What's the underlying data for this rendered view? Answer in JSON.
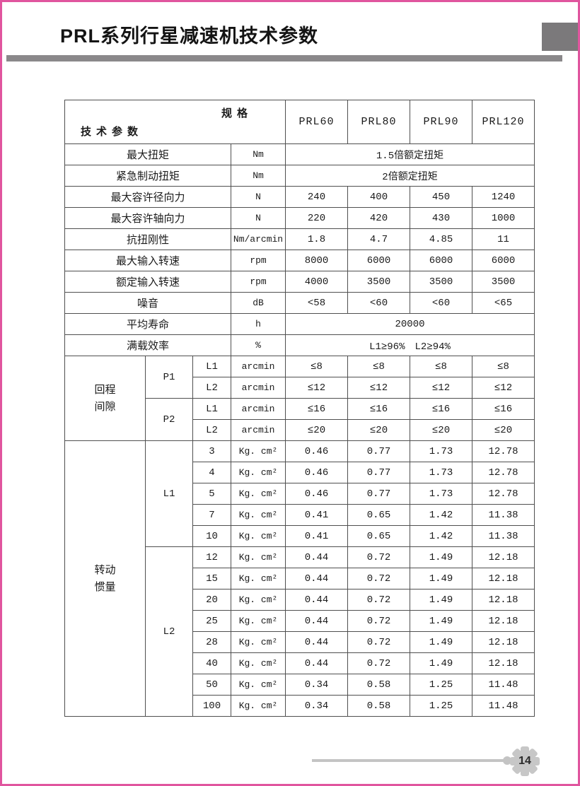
{
  "page": {
    "title": "PRL系列行星减速机技术参数",
    "page_number": "14"
  },
  "colors": {
    "accent_pink": "#e0559e",
    "header_bar_gray": "#8a888a",
    "corner_block_gray": "#7b797b",
    "row_shade": "#ddd9d3",
    "footer_gray": "#c4c4c4"
  },
  "table": {
    "corner": {
      "top_right": "规格",
      "bottom_left": "技术参数"
    },
    "columns": [
      "PRL60",
      "PRL80",
      "PRL90",
      "PRL120"
    ],
    "simple_rows": [
      {
        "label": "最大扭矩",
        "unit": "Nm",
        "span": "1.5倍额定扭矩",
        "shaded": true
      },
      {
        "label": "紧急制动扭矩",
        "unit": "Nm",
        "span": "2倍额定扭矩",
        "shaded": false
      },
      {
        "label": "最大容许径向力",
        "unit": "N",
        "values": [
          "240",
          "400",
          "450",
          "1240"
        ],
        "shaded": true
      },
      {
        "label": "最大容许轴向力",
        "unit": "N",
        "values": [
          "220",
          "420",
          "430",
          "1000"
        ],
        "shaded": false
      },
      {
        "label": "抗扭刚性",
        "unit": "Nm/arcmin",
        "values": [
          "1.8",
          "4.7",
          "4.85",
          "11"
        ],
        "shaded": true
      },
      {
        "label": "最大输入转速",
        "unit": "rpm",
        "values": [
          "8000",
          "6000",
          "6000",
          "6000"
        ],
        "shaded": false
      },
      {
        "label": "额定输入转速",
        "unit": "rpm",
        "values": [
          "4000",
          "3500",
          "3500",
          "3500"
        ],
        "shaded": true
      },
      {
        "label": "噪音",
        "unit": "dB",
        "values": [
          "<58",
          "<60",
          "<60",
          "<65"
        ],
        "shaded": false
      },
      {
        "label": "平均寿命",
        "unit": "h",
        "span": "20000",
        "shaded": true
      },
      {
        "label": "满载效率",
        "unit": "%",
        "span": "L1≥96%　L2≥94%",
        "shaded": false
      }
    ],
    "backlash": {
      "label": "回程间隙",
      "groups": [
        {
          "label": "P1",
          "rows": [
            {
              "stage": "L1",
              "unit": "arcmin",
              "values": [
                "≤8",
                "≤8",
                "≤8",
                "≤8"
              ],
              "shaded": true
            },
            {
              "stage": "L2",
              "unit": "arcmin",
              "values": [
                "≤12",
                "≤12",
                "≤12",
                "≤12"
              ],
              "shaded": false
            }
          ]
        },
        {
          "label": "P2",
          "rows": [
            {
              "stage": "L1",
              "unit": "arcmin",
              "values": [
                "≤16",
                "≤16",
                "≤16",
                "≤16"
              ],
              "shaded": true
            },
            {
              "stage": "L2",
              "unit": "arcmin",
              "values": [
                "≤20",
                "≤20",
                "≤20",
                "≤20"
              ],
              "shaded": false
            }
          ]
        }
      ]
    },
    "inertia": {
      "label": "转动惯量",
      "groups": [
        {
          "label": "L1",
          "rows": [
            {
              "ratio": "3",
              "unit": "Kg. cm²",
              "values": [
                "0.46",
                "0.77",
                "1.73",
                "12.78"
              ],
              "shaded": true
            },
            {
              "ratio": "4",
              "unit": "Kg. cm²",
              "values": [
                "0.46",
                "0.77",
                "1.73",
                "12.78"
              ],
              "shaded": false
            },
            {
              "ratio": "5",
              "unit": "Kg. cm²",
              "values": [
                "0.46",
                "0.77",
                "1.73",
                "12.78"
              ],
              "shaded": true
            },
            {
              "ratio": "7",
              "unit": "Kg. cm²",
              "values": [
                "0.41",
                "0.65",
                "1.42",
                "11.38"
              ],
              "shaded": false
            },
            {
              "ratio": "10",
              "unit": "Kg. cm²",
              "values": [
                "0.41",
                "0.65",
                "1.42",
                "11.38"
              ],
              "shaded": true
            }
          ]
        },
        {
          "label": "L2",
          "rows": [
            {
              "ratio": "12",
              "unit": "Kg. cm²",
              "values": [
                "0.44",
                "0.72",
                "1.49",
                "12.18"
              ],
              "shaded": false
            },
            {
              "ratio": "15",
              "unit": "Kg. cm²",
              "values": [
                "0.44",
                "0.72",
                "1.49",
                "12.18"
              ],
              "shaded": true
            },
            {
              "ratio": "20",
              "unit": "Kg. cm²",
              "values": [
                "0.44",
                "0.72",
                "1.49",
                "12.18"
              ],
              "shaded": false
            },
            {
              "ratio": "25",
              "unit": "Kg. cm²",
              "values": [
                "0.44",
                "0.72",
                "1.49",
                "12.18"
              ],
              "shaded": true
            },
            {
              "ratio": "28",
              "unit": "Kg. cm²",
              "values": [
                "0.44",
                "0.72",
                "1.49",
                "12.18"
              ],
              "shaded": false
            },
            {
              "ratio": "40",
              "unit": "Kg. cm²",
              "values": [
                "0.44",
                "0.72",
                "1.49",
                "12.18"
              ],
              "shaded": true
            },
            {
              "ratio": "50",
              "unit": "Kg. cm²",
              "values": [
                "0.34",
                "0.58",
                "1.25",
                "11.48"
              ],
              "shaded": false
            },
            {
              "ratio": "100",
              "unit": "Kg. cm²",
              "values": [
                "0.34",
                "0.58",
                "1.25",
                "11.48"
              ],
              "shaded": true
            }
          ]
        }
      ]
    }
  }
}
